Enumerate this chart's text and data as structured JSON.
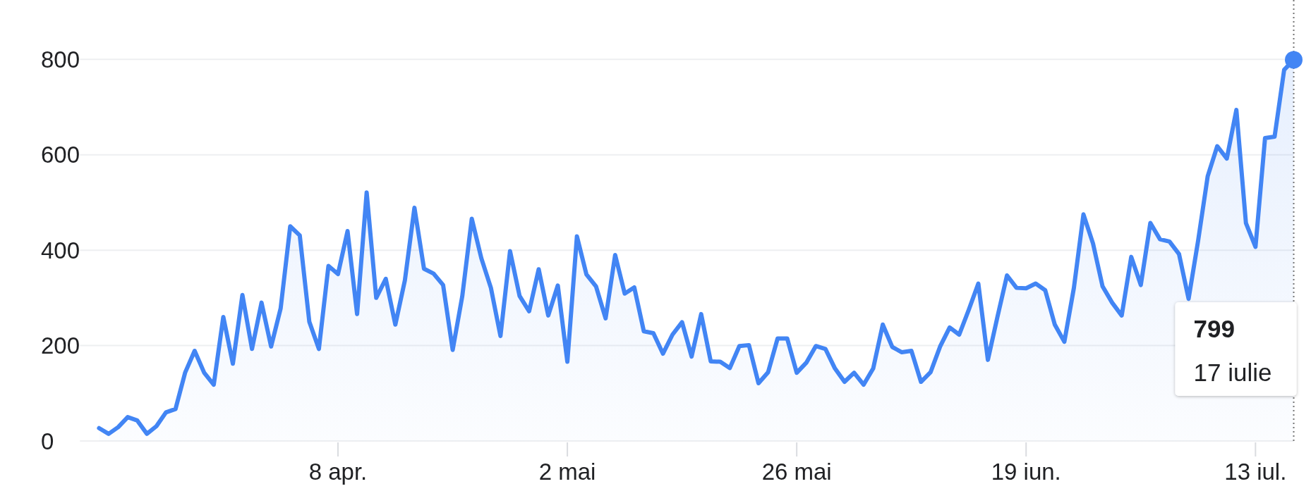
{
  "chart_data": {
    "type": "area",
    "grid": "y",
    "x": [
      "--03-14",
      "--03-15",
      "--03-16",
      "--03-17",
      "--03-18",
      "--03-19",
      "--03-20",
      "--03-21",
      "--03-22",
      "--03-23",
      "--03-24",
      "--03-25",
      "--03-26",
      "--03-27",
      "--03-28",
      "--03-29",
      "--03-30",
      "--03-31",
      "--04-01",
      "--04-02",
      "--04-03",
      "--04-04",
      "--04-05",
      "--04-06",
      "--04-07",
      "--04-08",
      "--04-09",
      "--04-10",
      "--04-11",
      "--04-12",
      "--04-13",
      "--04-14",
      "--04-15",
      "--04-16",
      "--04-17",
      "--04-18",
      "--04-19",
      "--04-20",
      "--04-21",
      "--04-22",
      "--04-23",
      "--04-24",
      "--04-25",
      "--04-26",
      "--04-27",
      "--04-28",
      "--04-29",
      "--04-30",
      "--05-01",
      "--05-02",
      "--05-03",
      "--05-04",
      "--05-05",
      "--05-06",
      "--05-07",
      "--05-08",
      "--05-09",
      "--05-10",
      "--05-11",
      "--05-12",
      "--05-13",
      "--05-14",
      "--05-15",
      "--05-16",
      "--05-17",
      "--05-18",
      "--05-19",
      "--05-20",
      "--05-21",
      "--05-22",
      "--05-23",
      "--05-24",
      "--05-25",
      "--05-26",
      "--05-27",
      "--05-28",
      "--05-29",
      "--05-30",
      "--05-31",
      "--06-01",
      "--06-02",
      "--06-03",
      "--06-04",
      "--06-05",
      "--06-06",
      "--06-07",
      "--06-08",
      "--06-09",
      "--06-10",
      "--06-11",
      "--06-12",
      "--06-13",
      "--06-14",
      "--06-15",
      "--06-16",
      "--06-17",
      "--06-18",
      "--06-19",
      "--06-20",
      "--06-21",
      "--06-22",
      "--06-23",
      "--06-24",
      "--06-25",
      "--06-26",
      "--06-27",
      "--06-28",
      "--06-29",
      "--06-30",
      "--07-01",
      "--07-02",
      "--07-03",
      "--07-04",
      "--07-05",
      "--07-06",
      "--07-07",
      "--07-08",
      "--07-09",
      "--07-10",
      "--07-11",
      "--07-12",
      "--07-13",
      "--07-14",
      "--07-15",
      "--07-16",
      "--07-17"
    ],
    "xlim": [
      "--03-12",
      "--07-17"
    ],
    "xticks": [
      {
        "value": "--04-08",
        "label": "8 apr."
      },
      {
        "value": "--05-02",
        "label": "2 mai"
      },
      {
        "value": "--05-26",
        "label": "26 mai"
      },
      {
        "value": "--06-19",
        "label": "19 iun."
      },
      {
        "value": "--07-13",
        "label": "13 iul."
      }
    ],
    "ylim": [
      0,
      920
    ],
    "yticks": [
      0,
      200,
      400,
      600,
      800
    ],
    "series": [
      {
        "color": "#4285f4",
        "values": [
          27,
          15,
          29,
          50,
          43,
          15,
          31,
          60,
          67,
          143,
          189,
          143,
          118,
          260,
          162,
          306,
          193,
          290,
          198,
          278,
          450,
          431,
          250,
          193,
          367,
          350,
          440,
          266,
          521,
          300,
          340,
          244,
          337,
          489,
          361,
          351,
          327,
          191,
          303,
          466,
          383,
          321,
          220,
          398,
          304,
          272,
          360,
          263,
          326,
          166,
          429,
          349,
          324,
          257,
          390,
          309,
          322,
          230,
          226,
          183,
          223,
          249,
          177,
          266,
          167,
          166,
          153,
          199,
          201,
          121,
          144,
          215,
          215,
          143,
          164,
          199,
          193,
          152,
          124,
          143,
          118,
          152,
          244,
          197,
          186,
          189,
          124,
          144,
          198,
          238,
          223,
          275,
          330,
          170,
          260,
          347,
          321,
          320,
          330,
          316,
          244,
          208,
          321,
          475,
          414,
          324,
          290,
          263,
          386,
          327,
          457,
          423,
          418,
          392,
          298,
          420,
          555,
          618,
          592,
          694,
          457,
          407,
          635,
          638,
          778,
          799
        ]
      },
      {
        "type": "scatter",
        "color": "#4285f4",
        "marker": "circle",
        "x": [
          "--07-17"
        ],
        "values": [
          799
        ]
      }
    ],
    "ref_lines": [
      {
        "axis": "x",
        "value": "--07-17",
        "color": "#757575",
        "line_style": "dotted"
      }
    ],
    "annotations": [
      "799",
      "17 iulie"
    ]
  }
}
